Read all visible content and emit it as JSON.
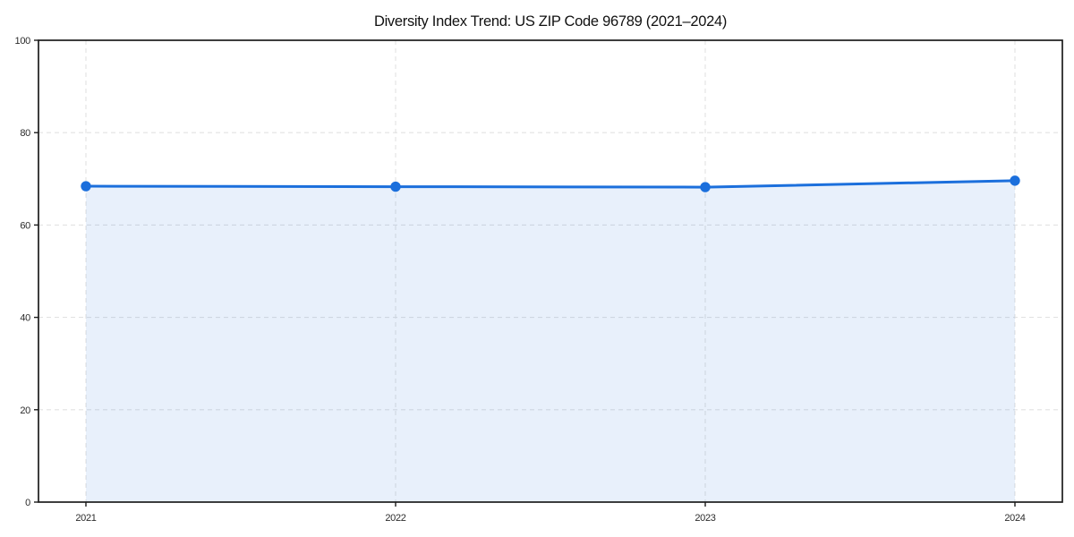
{
  "chart_data": {
    "type": "area",
    "title": "Diversity Index Trend: US ZIP Code 96789 (2021–2024)",
    "series_name": "Diversity Index",
    "categories": [
      "2021",
      "2022",
      "2023",
      "2024"
    ],
    "values": [
      68.4,
      68.3,
      68.2,
      69.6
    ],
    "xlabel": "",
    "ylabel": "",
    "ylim": [
      0,
      100
    ],
    "yticks": [
      0,
      20,
      40,
      60,
      80,
      100
    ],
    "grid": true,
    "grid_style": "dashed",
    "legend": "none",
    "marker": "circle",
    "colors": {
      "line": "#1b6fdc",
      "marker": "#1b6fdc",
      "area_fill": "rgba(27,111,220,0.10)",
      "grid": "#e2e2e2",
      "axis": "#1c1c1c",
      "tick_text": "#2b2b2b",
      "title_text": "#111111",
      "background": "#ffffff"
    }
  }
}
